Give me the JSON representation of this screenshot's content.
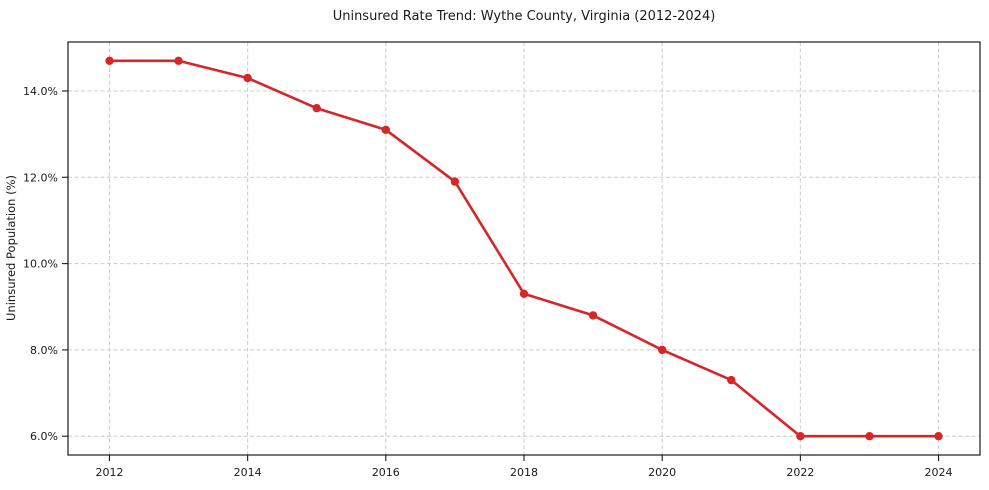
{
  "chart_data": {
    "type": "line",
    "title": "Uninsured Rate Trend: Wythe County, Virginia (2012-2024)",
    "xlabel": "",
    "ylabel": "Uninsured Population (%)",
    "x": [
      2012,
      2013,
      2014,
      2015,
      2016,
      2017,
      2018,
      2019,
      2020,
      2021,
      2022,
      2023,
      2024
    ],
    "values": [
      14.7,
      14.7,
      14.3,
      13.6,
      13.1,
      11.9,
      9.3,
      8.8,
      8.0,
      7.3,
      6.0,
      6.0,
      6.0
    ],
    "series_name": "Uninsured rate",
    "xlim": [
      2011.4,
      2024.6
    ],
    "ylim": [
      5.565,
      15.135
    ],
    "xtick_values": [
      2012,
      2014,
      2016,
      2018,
      2020,
      2022,
      2024
    ],
    "xtick_labels": [
      "2012",
      "2014",
      "2016",
      "2018",
      "2020",
      "2022",
      "2024"
    ],
    "ytick_values": [
      6.0,
      8.0,
      10.0,
      12.0,
      14.0
    ],
    "ytick_labels": [
      "6.0%",
      "8.0%",
      "10.0%",
      "12.0%",
      "14.0%"
    ],
    "grid": true,
    "legend": "none",
    "line_color": "#d62728",
    "marker": "circle",
    "marker_radius": 4.2,
    "background_color": "#ffffff"
  }
}
